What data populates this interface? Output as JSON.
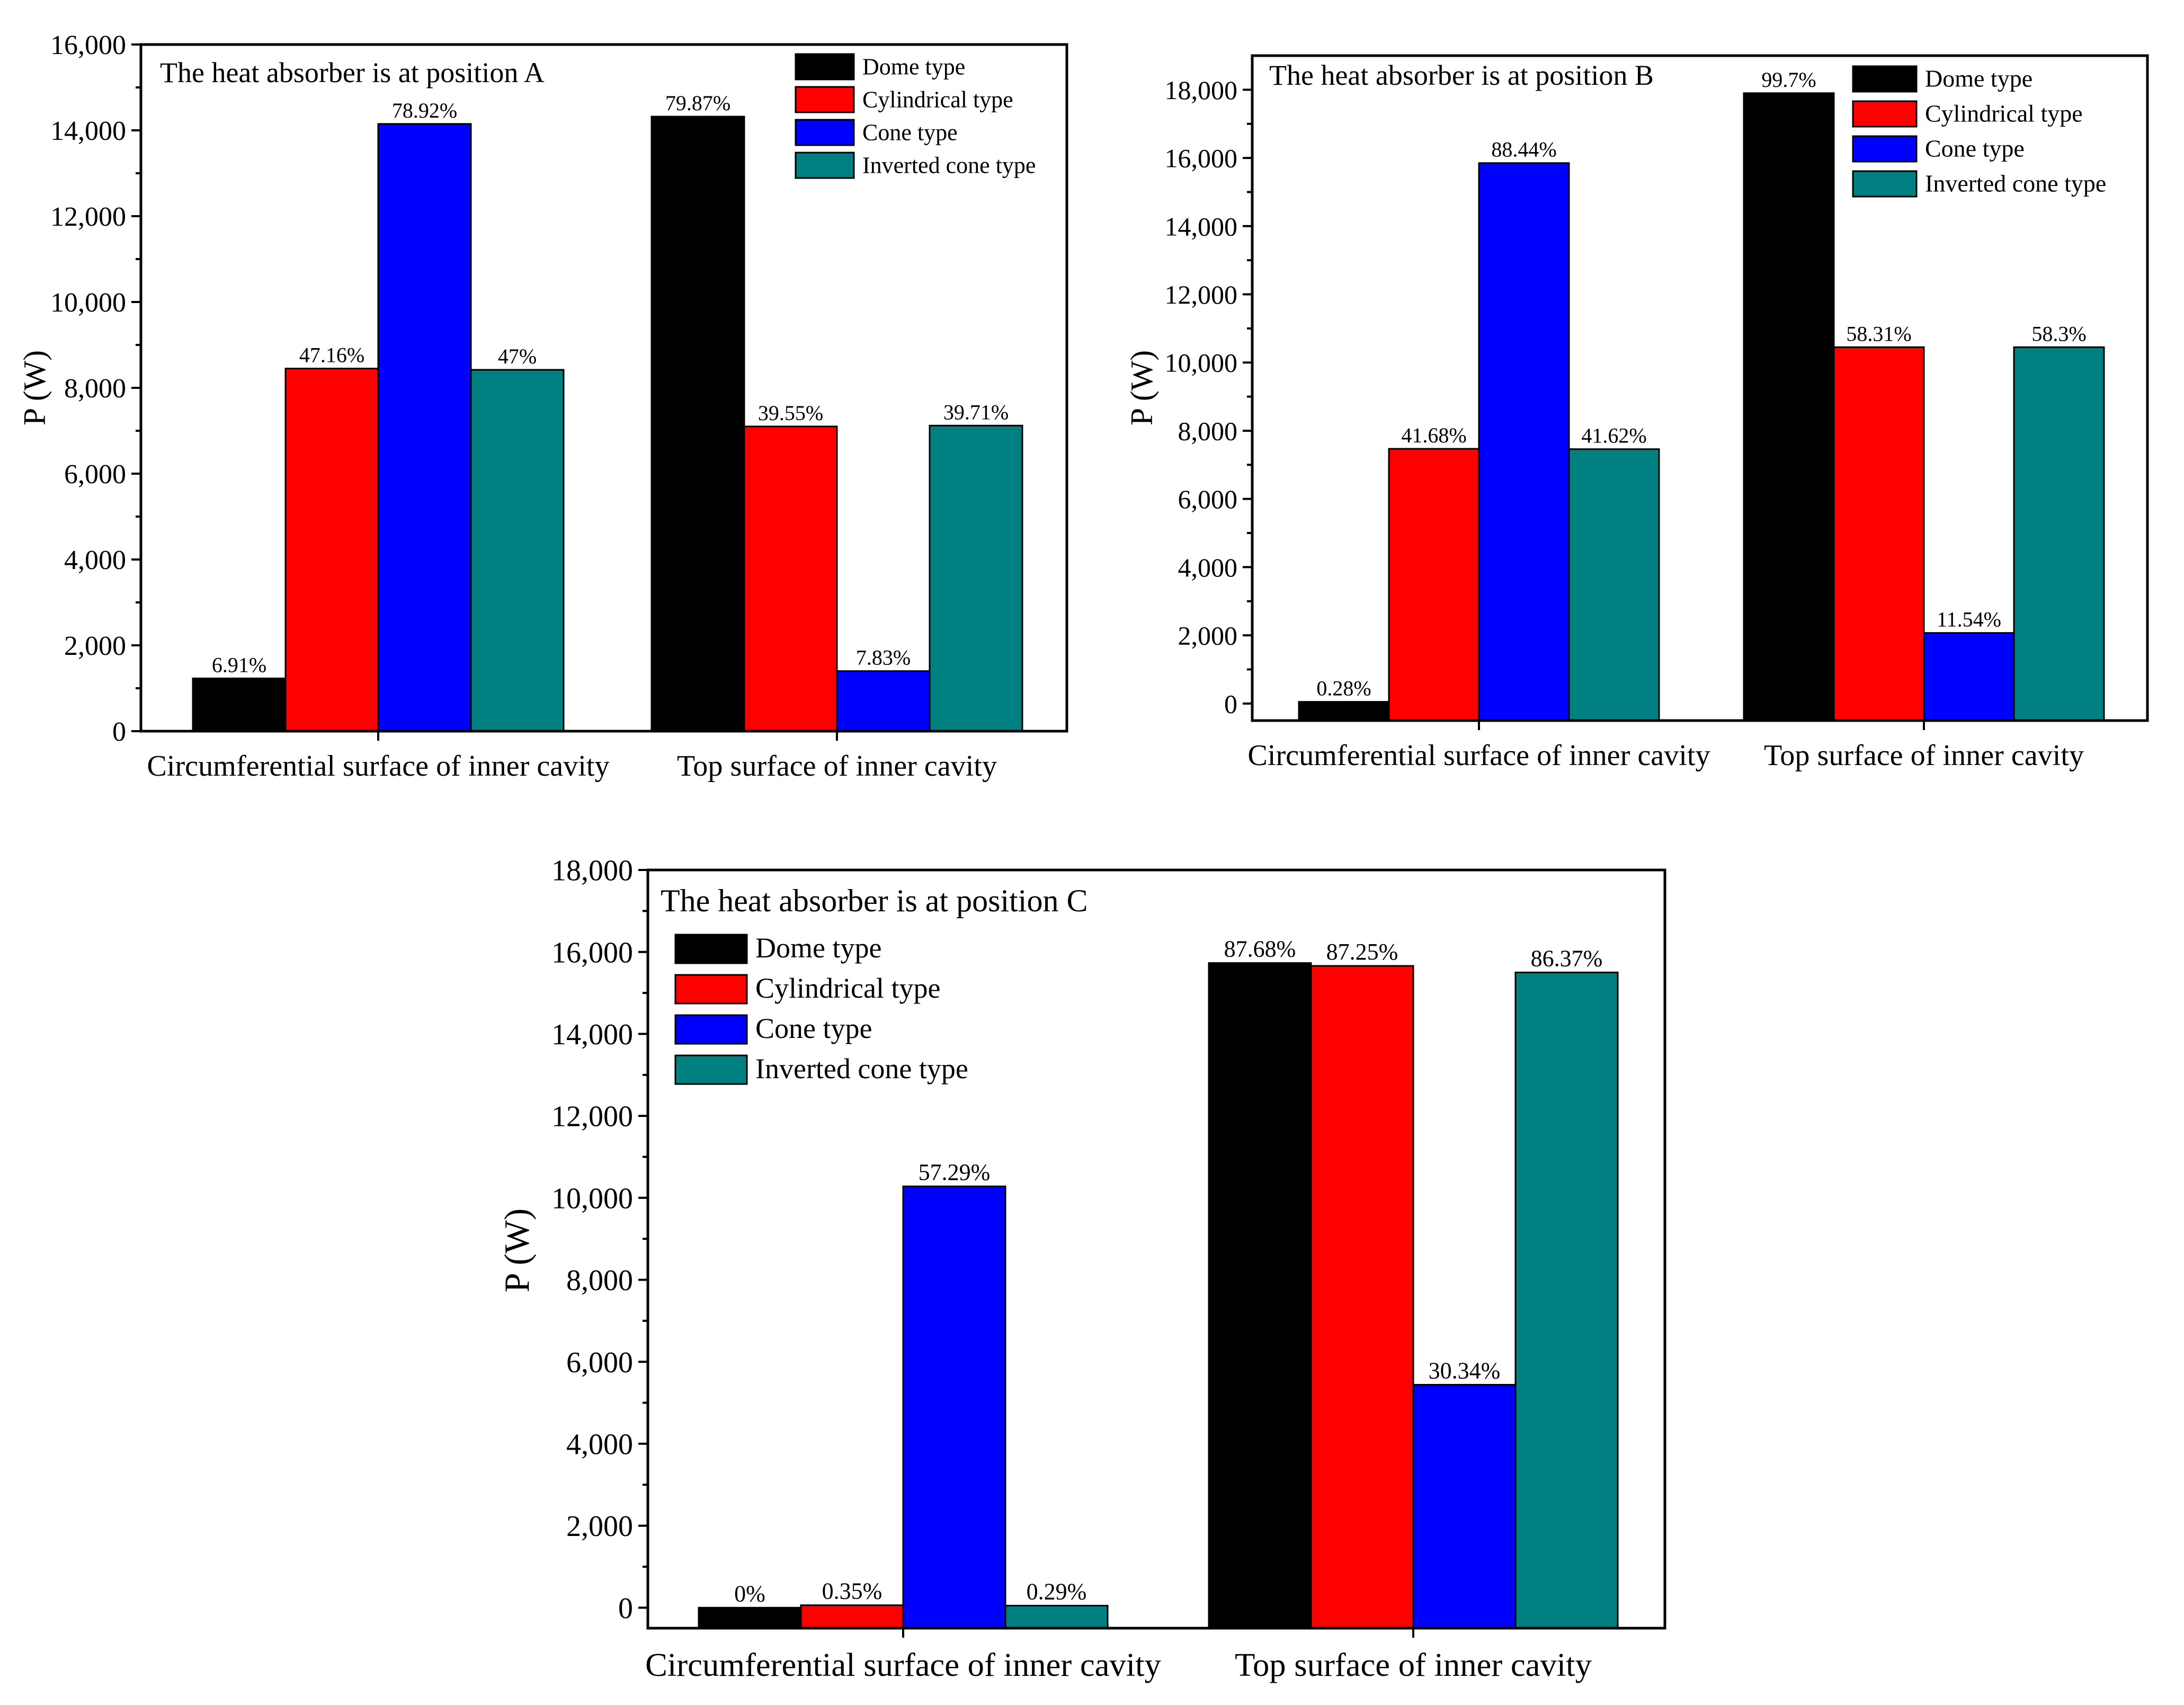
{
  "colors": {
    "Dome type": "#000000",
    "Cylindrical type": "#ff0000",
    "Cone type": "#0000ff",
    "Inverted cone type": "#008080"
  },
  "chart_data": [
    {
      "type": "bar",
      "title": "The heat absorber is at position A",
      "ylabel": "P (W)",
      "xlabel": "",
      "categories": [
        "Circumferential surface of inner cavity",
        "Top surface of inner cavity"
      ],
      "ylim": [
        0,
        16000
      ],
      "yticks": [
        0,
        2000,
        4000,
        6000,
        8000,
        10000,
        12000,
        14000,
        16000
      ],
      "ytick_labels": [
        "0",
        "2,000",
        "4,000",
        "6,000",
        "8,000",
        "10,000",
        "12,000",
        "14,000",
        "16,000"
      ],
      "legend_position": "top-right",
      "series": [
        {
          "name": "Dome type",
          "values": [
            1230,
            14320
          ],
          "labels": [
            "6.91%",
            "79.87%"
          ]
        },
        {
          "name": "Cylindrical type",
          "values": [
            8450,
            7100
          ],
          "labels": [
            "47.16%",
            "39.55%"
          ]
        },
        {
          "name": "Cone type",
          "values": [
            14150,
            1400
          ],
          "labels": [
            "78.92%",
            "7.83%"
          ]
        },
        {
          "name": "Inverted cone type",
          "values": [
            8420,
            7120
          ],
          "labels": [
            "47%",
            "39.71%"
          ]
        }
      ]
    },
    {
      "type": "bar",
      "title": "The heat absorber is at position B",
      "ylabel": "P (W)",
      "xlabel": "",
      "categories": [
        "Circumferential surface of inner cavity",
        "Top surface of inner cavity"
      ],
      "ylim": [
        -500,
        19000
      ],
      "yticks": [
        0,
        2000,
        4000,
        6000,
        8000,
        10000,
        12000,
        14000,
        16000,
        18000
      ],
      "ytick_labels": [
        "0",
        "2,000",
        "4,000",
        "6,000",
        "8,000",
        "10,000",
        "12,000",
        "14,000",
        "16,000",
        "18,000"
      ],
      "legend_position": "top-right",
      "series": [
        {
          "name": "Dome type",
          "values": [
            50,
            17900
          ],
          "labels": [
            "0.28%",
            "99.7%"
          ]
        },
        {
          "name": "Cylindrical type",
          "values": [
            7470,
            10450
          ],
          "labels": [
            "41.68%",
            "58.31%"
          ]
        },
        {
          "name": "Cone type",
          "values": [
            15850,
            2070
          ],
          "labels": [
            "88.44%",
            "11.54%"
          ]
        },
        {
          "name": "Inverted cone type",
          "values": [
            7460,
            10450
          ],
          "labels": [
            "41.62%",
            "58.3%"
          ]
        }
      ]
    },
    {
      "type": "bar",
      "title": "The heat absorber is at position C",
      "ylabel": "P (W)",
      "xlabel": "",
      "categories": [
        "Circumferential surface of inner cavity",
        "Top surface of inner cavity"
      ],
      "ylim": [
        -500,
        18000
      ],
      "yticks": [
        0,
        2000,
        4000,
        6000,
        8000,
        10000,
        12000,
        14000,
        16000,
        18000
      ],
      "ytick_labels": [
        "0",
        "2,000",
        "4,000",
        "6,000",
        "8,000",
        "10,000",
        "12,000",
        "14,000",
        "16,000",
        "18,000"
      ],
      "legend_position": "top-left",
      "series": [
        {
          "name": "Dome type",
          "values": [
            0,
            15730
          ],
          "labels": [
            "0%",
            "87.68%"
          ]
        },
        {
          "name": "Cylindrical type",
          "values": [
            60,
            15660
          ],
          "labels": [
            "0.35%",
            "87.25%"
          ]
        },
        {
          "name": "Cone type",
          "values": [
            10280,
            5440
          ],
          "labels": [
            "57.29%",
            "30.34%"
          ]
        },
        {
          "name": "Inverted cone type",
          "values": [
            50,
            15500
          ],
          "labels": [
            "0.29%",
            "86.37%"
          ]
        }
      ]
    }
  ]
}
